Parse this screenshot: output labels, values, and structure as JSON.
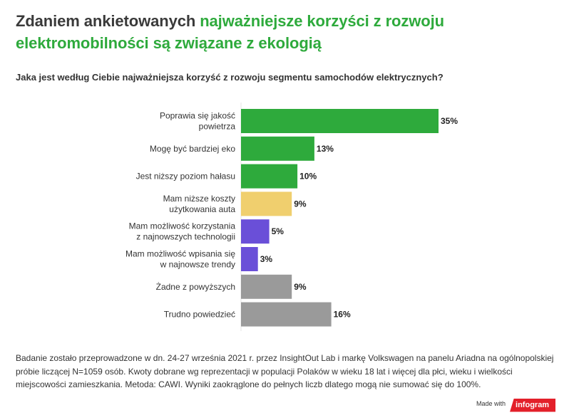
{
  "title": {
    "part1": "Zdaniem ankietowanych ",
    "part2": "najważniejsze korzyści z rozwoju elektromobilności są związane z ekologią"
  },
  "question": "Jaka jest według Ciebie najważniejsza korzyść z rozwoju segmentu samochodów elektrycznych?",
  "chart_data": {
    "type": "bar",
    "orientation": "horizontal",
    "categories": [
      [
        "Poprawia się jakość",
        "powietrza"
      ],
      [
        "Mogę być bardziej eko"
      ],
      [
        "Jest niższy poziom hałasu"
      ],
      [
        "Mam niższe koszty",
        "użytkowania auta"
      ],
      [
        "Mam możliwość korzystania",
        "z najnowszych technologii"
      ],
      [
        "Mam możliwość wpisania się",
        "w najnowsze trendy"
      ],
      [
        "Żadne z powyższych"
      ],
      [
        "Trudno powiedzieć"
      ]
    ],
    "values": [
      35,
      13,
      10,
      9,
      5,
      3,
      9,
      16
    ],
    "value_labels": [
      "35%",
      "13%",
      "10%",
      "9%",
      "5%",
      "3%",
      "9%",
      "16%"
    ],
    "colors": [
      "#2eaa3c",
      "#2eaa3c",
      "#2eaa3c",
      "#f0cf6e",
      "#6a4fd8",
      "#6a4fd8",
      "#9a9a9a",
      "#9a9a9a"
    ],
    "xlim": [
      0,
      35
    ],
    "grid": false,
    "legend": "none"
  },
  "footnote": "Badanie zostało przeprowadzone w dn. 24-27 września 2021 r. przez InsightOut Lab i markę Volkswagen na panelu Ariadna na ogólnopolskiej próbie liczącej N=1059 osób. Kwoty dobrane wg reprezentacji w populacji Polaków w wieku 18 lat i więcej dla płci, wieku i wielkości miejscowości zamieszkania. Metoda: CAWI. Wyniki zaokrąglone do pełnych liczb dlatego mogą nie sumować się do 100%.",
  "badge": {
    "made_with": "Made with",
    "brand": "infogram"
  }
}
